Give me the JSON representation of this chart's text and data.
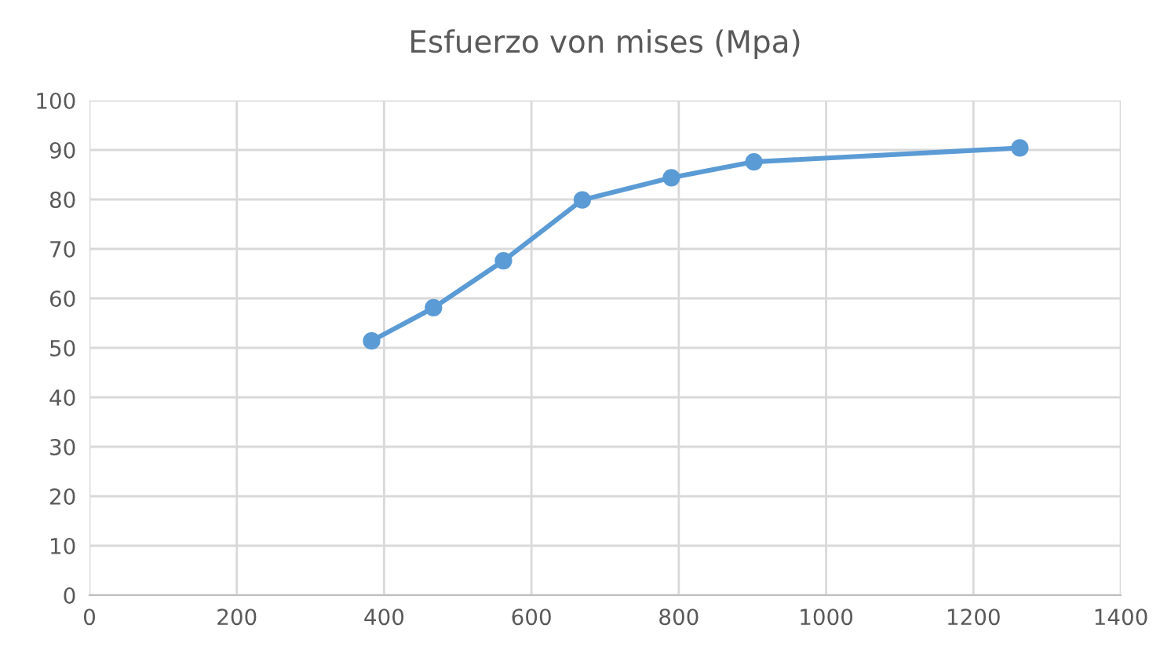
{
  "chart_data": {
    "type": "line",
    "title": "Esfuerzo von mises (Mpa)",
    "x": [
      383,
      467,
      562,
      669,
      790,
      902,
      1263
    ],
    "series": [
      {
        "color": "#5b9bd5",
        "values": [
          51.4,
          58.1,
          67.6,
          79.9,
          84.4,
          87.6,
          90.4
        ]
      }
    ],
    "xlim": [
      0,
      1400
    ],
    "xticks": [
      0,
      200,
      400,
      600,
      800,
      1000,
      1200,
      1400
    ],
    "ylim": [
      0,
      100
    ],
    "yticks": [
      0,
      10,
      20,
      30,
      40,
      50,
      60,
      70,
      80,
      90,
      100
    ],
    "grid": true,
    "marker": "circle",
    "line_style": "solid"
  }
}
